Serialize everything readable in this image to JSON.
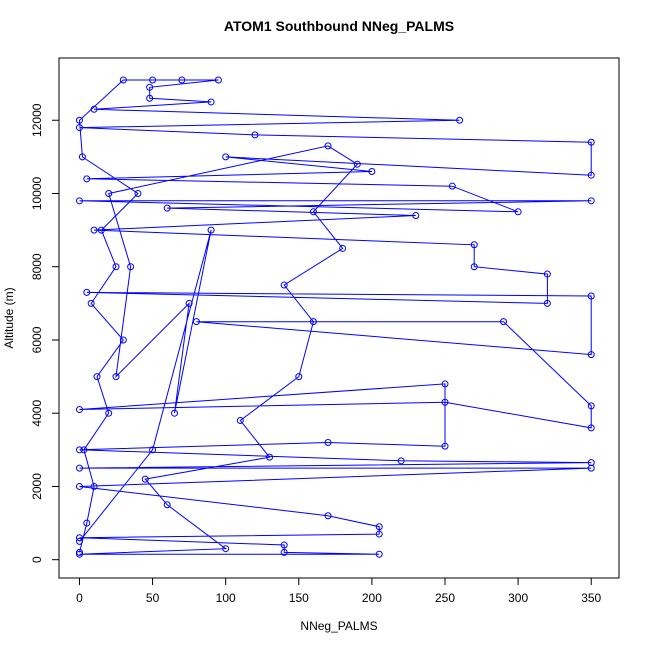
{
  "chart_data": {
    "type": "line",
    "title": "ATOM1 Southbound NNeg_PALMS",
    "x_label": "NNeg_PALMS",
    "y_label": "Altitude (m)",
    "xlim": [
      -14,
      369
    ],
    "ylim": [
      -500,
      13700
    ],
    "xticks": [
      0,
      50,
      100,
      150,
      200,
      250,
      300,
      350
    ],
    "yticks": [
      0,
      2000,
      4000,
      6000,
      8000,
      10000,
      12000
    ],
    "series": [
      {
        "name": "NNeg_PALMS",
        "color": "#0000ff",
        "x": [
          0,
          5,
          10,
          3,
          20,
          12,
          30,
          8,
          25,
          15,
          40,
          2,
          0,
          30,
          50,
          70,
          95,
          48,
          48,
          90,
          10,
          260,
          0,
          120,
          350,
          350,
          100,
          200,
          5,
          255,
          300,
          0,
          350,
          60,
          230,
          10,
          270,
          270,
          320,
          320,
          5,
          350,
          350,
          80,
          290,
          350,
          350,
          250,
          0,
          250,
          250,
          170,
          0,
          220,
          350,
          0,
          350,
          0,
          170,
          205,
          205,
          0,
          140,
          140,
          205,
          0,
          100,
          60,
          45,
          130,
          110,
          150,
          160,
          140,
          180,
          160,
          190,
          170,
          20,
          35,
          25,
          75,
          65,
          90,
          50,
          0
        ],
        "values": [
          200,
          1000,
          2000,
          3000,
          4000,
          5000,
          6000,
          7000,
          8000,
          9000,
          10000,
          11000,
          12000,
          13100,
          13100,
          13100,
          13100,
          12900,
          12600,
          12500,
          12300,
          12000,
          11800,
          11600,
          11400,
          10500,
          11000,
          10600,
          10400,
          10200,
          9500,
          9800,
          9800,
          9600,
          9400,
          9000,
          8600,
          8000,
          7800,
          7000,
          7300,
          7200,
          5600,
          6500,
          6500,
          4200,
          3600,
          4300,
          4100,
          4800,
          3100,
          3200,
          3000,
          2700,
          2650,
          2500,
          2500,
          2000,
          1200,
          900,
          700,
          600,
          400,
          200,
          150,
          150,
          300,
          1500,
          2200,
          2800,
          3800,
          5000,
          6500,
          7500,
          8500,
          9500,
          10800,
          11300,
          10000,
          8000,
          5000,
          7000,
          4000,
          9000,
          3000,
          500
        ]
      }
    ]
  }
}
